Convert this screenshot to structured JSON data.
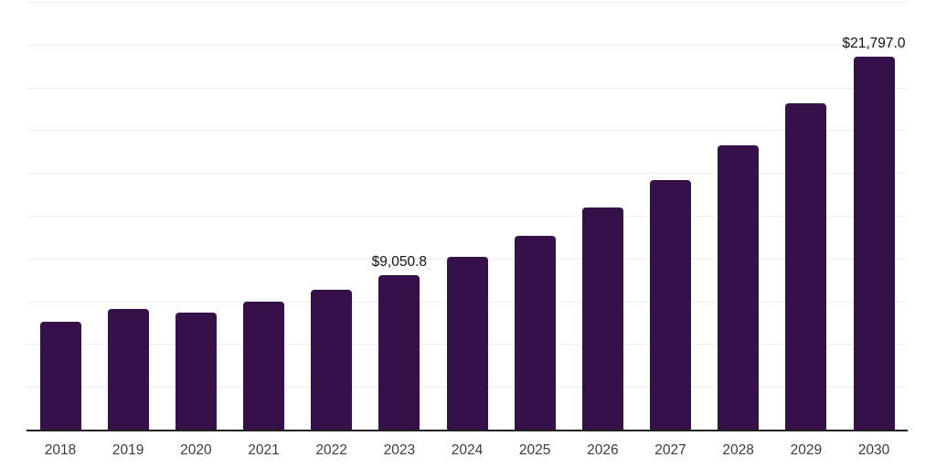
{
  "chart_data": {
    "type": "bar",
    "title": "",
    "xlabel": "",
    "ylabel": "",
    "categories": [
      "2018",
      "2019",
      "2020",
      "2021",
      "2022",
      "2023",
      "2024",
      "2025",
      "2026",
      "2027",
      "2028",
      "2029",
      "2030"
    ],
    "values": [
      6320,
      7070,
      6830,
      7460,
      8150,
      9050.8,
      10070,
      11350,
      12980,
      14580,
      16620,
      19070,
      21797
    ],
    "data_labels": {
      "2023": "$9,050.8",
      "2030": "$21,797.0"
    },
    "ylim": [
      0,
      25000
    ],
    "gridline_interval": 2500,
    "grid": true,
    "legend": false,
    "y_tick_labels_visible": false,
    "colors": {
      "bar": "#351049",
      "gridline": "#ececec",
      "axis_line": "#1f1f1f",
      "tick_label": "#3c3c3c",
      "data_label": "#111111",
      "background": "#ffffff"
    }
  }
}
